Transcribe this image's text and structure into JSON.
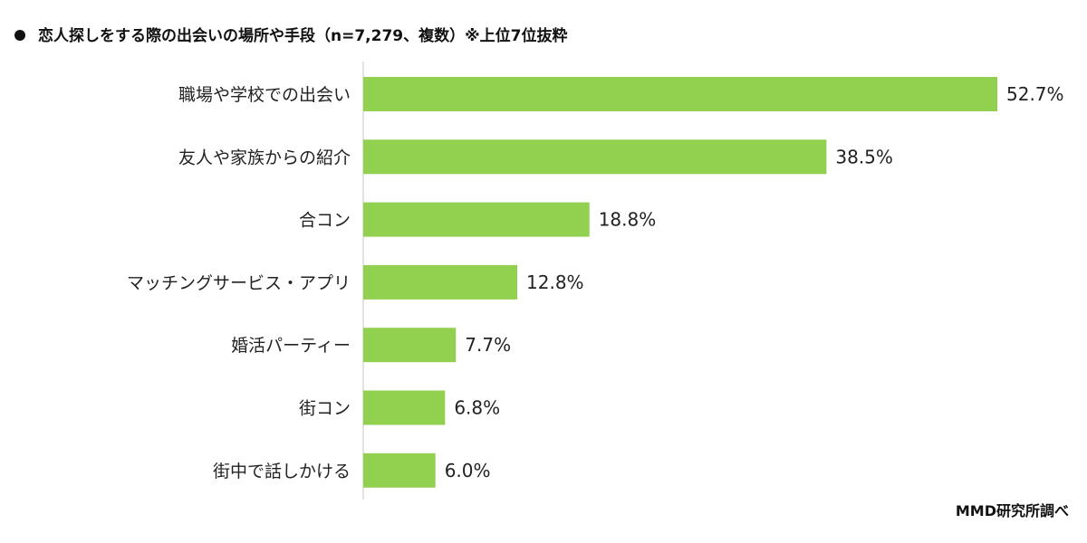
{
  "title": "恋人探しをする際の出会いの場所や手段（n=7,279、複数）※上位7位抜粋",
  "source": "MMD研究所調べ",
  "colors": {
    "bar": "#92d050",
    "axis": "#d9d9d9",
    "bullet": "#111111"
  },
  "chart_data": {
    "type": "bar",
    "orientation": "horizontal",
    "title": "恋人探しをする際の出会いの場所や手段（n=7,279、複数）※上位7位抜粋",
    "categories": [
      "職場や学校での出会い",
      "友人や家族からの紹介",
      "合コン",
      "マッチングサービス・アプリ",
      "婚活パーティー",
      "街コン",
      "街中で話しかける"
    ],
    "values": [
      52.7,
      38.5,
      18.8,
      12.8,
      7.7,
      6.8,
      6.0
    ],
    "value_labels": [
      "52.7%",
      "38.5%",
      "18.8%",
      "12.8%",
      "7.7%",
      "6.8%",
      "6.0%"
    ],
    "unit": "%",
    "xlabel": "",
    "ylabel": "",
    "xlim": [
      0,
      52.7
    ],
    "grid": false,
    "legend": "none"
  }
}
